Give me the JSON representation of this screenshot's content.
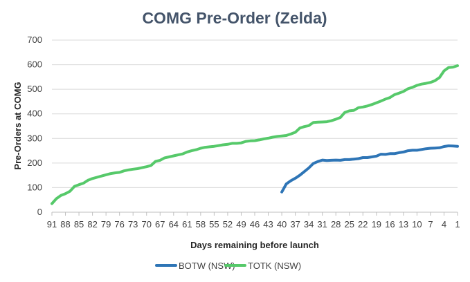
{
  "chart_data": {
    "type": "line",
    "title": "COMG Pre-Order (Zelda)",
    "xlabel": "Days remaining before launch",
    "ylabel": "Pre-Orders at COMG",
    "ylim": [
      0,
      700
    ],
    "yticks": [
      0,
      100,
      200,
      300,
      400,
      500,
      600,
      700
    ],
    "xlim": [
      91,
      1
    ],
    "xticks": [
      91,
      88,
      85,
      82,
      79,
      76,
      73,
      70,
      67,
      64,
      61,
      58,
      55,
      52,
      49,
      46,
      43,
      40,
      37,
      34,
      31,
      28,
      25,
      22,
      19,
      16,
      13,
      10,
      7,
      4,
      1
    ],
    "grid": "horizontal",
    "legend_position": "bottom",
    "series": [
      {
        "name": "BOTW (NSW)",
        "color": "#2E75B6",
        "x": [
          40,
          39,
          38,
          37,
          36,
          35,
          34,
          33,
          32,
          31,
          30,
          29,
          28,
          27,
          26,
          25,
          24,
          23,
          22,
          21,
          20,
          19,
          18,
          17,
          16,
          15,
          14,
          13,
          12,
          11,
          10,
          9,
          8,
          7,
          6,
          5,
          4,
          3,
          2,
          1
        ],
        "y": [
          82,
          115,
          128,
          138,
          150,
          165,
          180,
          198,
          206,
          212,
          210,
          211,
          212,
          211,
          214,
          214,
          216,
          218,
          222,
          222,
          225,
          228,
          236,
          235,
          238,
          238,
          242,
          245,
          250,
          252,
          252,
          255,
          258,
          260,
          261,
          262,
          267,
          270,
          269,
          268
        ]
      },
      {
        "name": "TOTK (NSW)",
        "color": "#56C96A",
        "x": [
          91,
          90,
          89,
          88,
          87,
          86,
          85,
          84,
          83,
          82,
          81,
          80,
          79,
          78,
          77,
          76,
          75,
          74,
          73,
          72,
          71,
          70,
          69,
          68,
          67,
          66,
          65,
          64,
          63,
          62,
          61,
          60,
          59,
          58,
          57,
          56,
          55,
          54,
          53,
          52,
          51,
          50,
          49,
          48,
          47,
          46,
          45,
          44,
          43,
          42,
          41,
          40,
          39,
          38,
          37,
          36,
          35,
          34,
          33,
          32,
          31,
          30,
          29,
          28,
          27,
          26,
          25,
          24,
          23,
          22,
          21,
          20,
          19,
          18,
          17,
          16,
          15,
          14,
          13,
          12,
          11,
          10,
          9,
          8,
          7,
          6,
          5,
          4,
          3,
          2,
          1
        ],
        "y": [
          35,
          55,
          68,
          75,
          85,
          105,
          112,
          118,
          130,
          137,
          142,
          147,
          152,
          157,
          160,
          162,
          168,
          172,
          175,
          177,
          181,
          185,
          190,
          207,
          211,
          221,
          225,
          229,
          233,
          237,
          245,
          250,
          254,
          260,
          264,
          266,
          268,
          271,
          274,
          276,
          280,
          280,
          282,
          288,
          290,
          291,
          294,
          298,
          301,
          305,
          308,
          310,
          312,
          318,
          325,
          342,
          348,
          352,
          365,
          366,
          367,
          368,
          372,
          378,
          385,
          406,
          412,
          414,
          425,
          428,
          432,
          438,
          445,
          452,
          460,
          466,
          478,
          484,
          491,
          502,
          508,
          516,
          521,
          524,
          528,
          535,
          548,
          575,
          588,
          590,
          596
        ]
      }
    ]
  }
}
